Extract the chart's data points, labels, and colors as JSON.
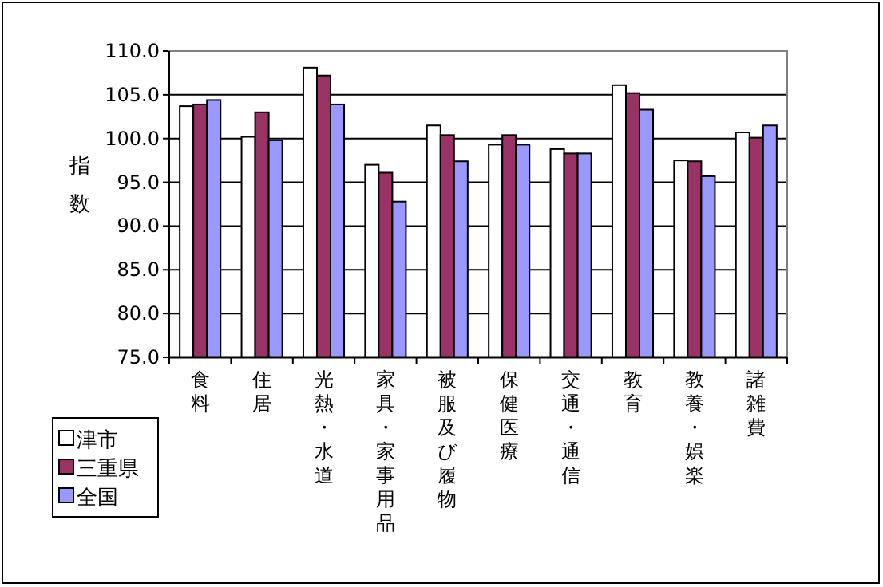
{
  "chart_data": {
    "type": "bar",
    "ylabel": "指数",
    "categories": [
      "食料",
      "住居",
      "光熱・水道",
      "家具・家事用品",
      "被服及び履物",
      "保健医療",
      "交通・通信",
      "教育",
      "教養・娯楽",
      "諸雑費"
    ],
    "series": [
      {
        "name": "津市",
        "color": "#ffffff",
        "values": [
          103.7,
          100.2,
          108.1,
          97.0,
          101.5,
          99.3,
          98.8,
          106.1,
          97.5,
          100.7
        ]
      },
      {
        "name": "三重県",
        "color": "#993366",
        "values": [
          103.9,
          103.0,
          107.2,
          96.1,
          100.4,
          100.4,
          98.3,
          105.2,
          97.4,
          100.1
        ]
      },
      {
        "name": "全国",
        "color": "#9999ff",
        "values": [
          104.4,
          99.8,
          103.9,
          92.8,
          97.4,
          99.3,
          98.3,
          103.3,
          95.7,
          101.5
        ]
      }
    ],
    "ylim": [
      75,
      110
    ],
    "yticks": [
      {
        "value": 75,
        "label": "75.0"
      },
      {
        "value": 80,
        "label": "80.0"
      },
      {
        "value": 85,
        "label": "85.0"
      },
      {
        "value": 90,
        "label": "90.0"
      },
      {
        "value": 95,
        "label": "95.0"
      },
      {
        "value": 100,
        "label": "100.0"
      },
      {
        "value": 105,
        "label": "105.0"
      },
      {
        "value": 110,
        "label": "110.0"
      }
    ],
    "grid": "y",
    "legend": "bottom left"
  }
}
